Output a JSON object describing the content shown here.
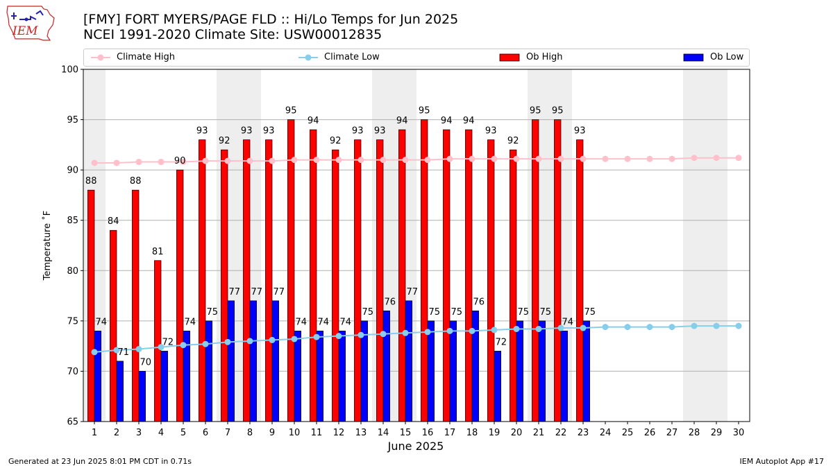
{
  "header": {
    "title_line1": "[FMY] FORT MYERS/PAGE FLD :: Hi/Lo Temps for Jun 2025",
    "title_line2": "NCEI 1991-2020 Climate Site: USW00012835"
  },
  "logo": {
    "text": "IEM"
  },
  "legend": {
    "placement": "top, full width",
    "items": [
      {
        "label": "Climate High",
        "color": "#ffc0cb",
        "kind": "line-marker"
      },
      {
        "label": "Climate Low",
        "color": "#87ceeb",
        "kind": "line-marker"
      },
      {
        "label": "Ob High",
        "color": "#ff0000",
        "kind": "bar"
      },
      {
        "label": "Ob Low",
        "color": "#0000ff",
        "kind": "bar"
      }
    ]
  },
  "footer": {
    "left": "Generated at 23 Jun 2025 8:01 PM CDT in 0.71s",
    "right": "IEM Autoplot App #17"
  },
  "chart_data": {
    "type": "bar",
    "xlabel": "June 2025",
    "ylabel": "Temperature ˚F",
    "ylim": [
      65,
      100
    ],
    "yticks": [
      65,
      70,
      75,
      80,
      85,
      90,
      95,
      100
    ],
    "grid": true,
    "categories": [
      "1",
      "2",
      "3",
      "4",
      "5",
      "6",
      "7",
      "8",
      "9",
      "10",
      "11",
      "12",
      "13",
      "14",
      "15",
      "16",
      "17",
      "18",
      "19",
      "20",
      "21",
      "22",
      "23",
      "24",
      "25",
      "26",
      "27",
      "28",
      "29",
      "30"
    ],
    "weekend_shading": [
      [
        1,
        1
      ],
      [
        7,
        8
      ],
      [
        14,
        15
      ],
      [
        21,
        22
      ],
      [
        28,
        29
      ]
    ],
    "series": [
      {
        "name": "Ob High",
        "type": "bar",
        "color": "#ff0000",
        "values": [
          88,
          84,
          88,
          81,
          90,
          93,
          92,
          93,
          93,
          95,
          94,
          92,
          93,
          93,
          94,
          95,
          94,
          94,
          93,
          92,
          95,
          95,
          93,
          null,
          null,
          null,
          null,
          null,
          null,
          null
        ]
      },
      {
        "name": "Ob Low",
        "type": "bar",
        "color": "#0000ff",
        "values": [
          74,
          71,
          70,
          72,
          74,
          75,
          77,
          77,
          77,
          74,
          74,
          74,
          75,
          76,
          77,
          75,
          75,
          76,
          72,
          75,
          75,
          74,
          75,
          null,
          null,
          null,
          null,
          null,
          null,
          null
        ]
      },
      {
        "name": "Climate High",
        "type": "line",
        "color": "#ffc0cb",
        "values": [
          90.7,
          90.7,
          90.8,
          90.8,
          90.8,
          90.9,
          90.9,
          90.9,
          90.9,
          91.0,
          91.0,
          91.0,
          91.0,
          91.0,
          91.0,
          91.0,
          91.1,
          91.1,
          91.1,
          91.1,
          91.1,
          91.1,
          91.1,
          91.1,
          91.1,
          91.1,
          91.1,
          91.2,
          91.2,
          91.2
        ]
      },
      {
        "name": "Climate Low",
        "type": "line",
        "color": "#87ceeb",
        "values": [
          71.9,
          72.1,
          72.2,
          72.4,
          72.6,
          72.7,
          72.9,
          73.0,
          73.1,
          73.2,
          73.4,
          73.5,
          73.6,
          73.7,
          73.8,
          73.9,
          74.0,
          74.0,
          74.1,
          74.2,
          74.2,
          74.3,
          74.3,
          74.4,
          74.4,
          74.4,
          74.4,
          74.5,
          74.5,
          74.5
        ]
      }
    ]
  }
}
